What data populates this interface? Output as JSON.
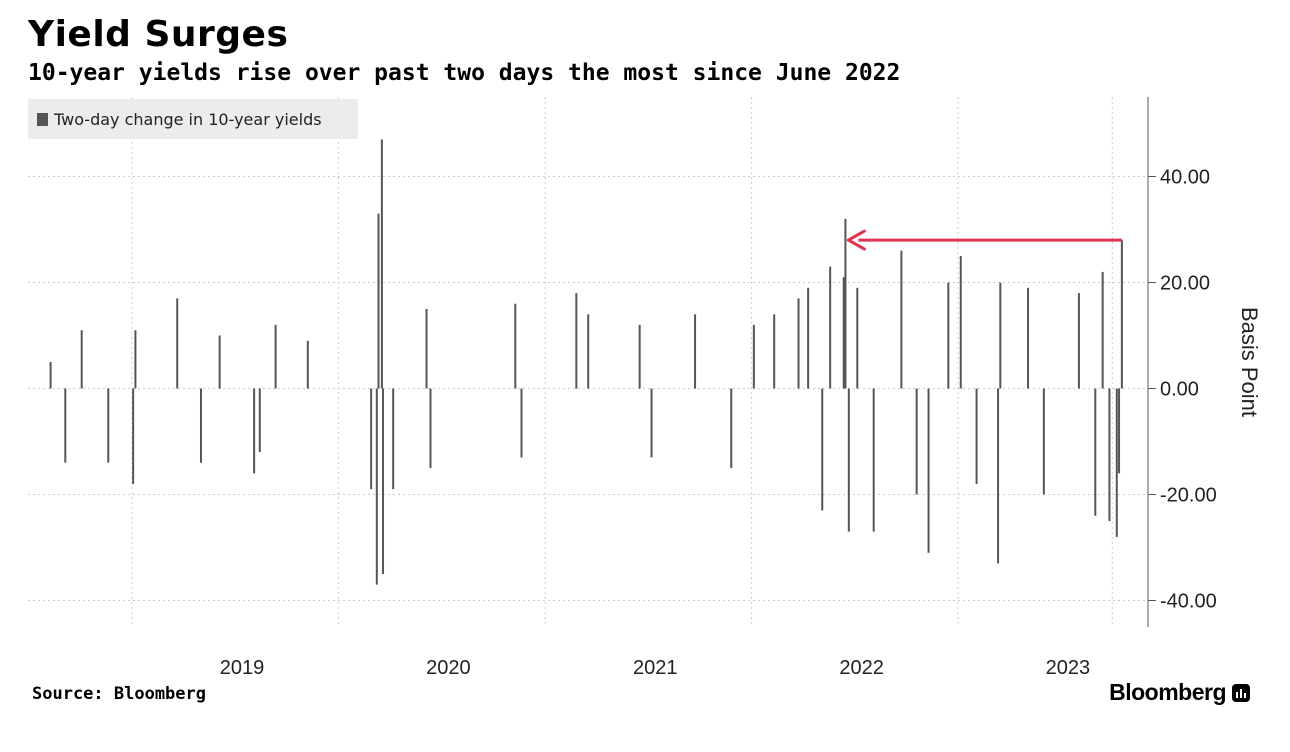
{
  "header": {
    "title": "Yield Surges",
    "subtitle": "10-year yields rise over past two days the most since June 2022"
  },
  "footer": {
    "source": "Source: Bloomberg",
    "brand": "Bloomberg"
  },
  "colors": {
    "bars": "#555555",
    "arrow": "#e0334f",
    "grid": "#cccccc",
    "legend_bg": "#ececec"
  },
  "chart_data": {
    "type": "bar",
    "legend": [
      "Two-day change in 10-year yields"
    ],
    "legend_placement": "top-left",
    "ylabel": "Basis Point",
    "ylim": [
      -45,
      55
    ],
    "yticks": [
      40,
      20,
      0,
      -20,
      -40
    ],
    "ytick_labels": [
      "40.00",
      "20.00",
      "0.00",
      "-20.00",
      "-40.00"
    ],
    "xlim": [
      "2018-07-01",
      "2023-10-20"
    ],
    "x_tick_labels": [
      "2019",
      "2020",
      "2021",
      "2022",
      "2023"
    ],
    "x_tick_positions": [
      "2019-01-01",
      "2020-01-01",
      "2021-01-01",
      "2022-01-01",
      "2023-01-01"
    ],
    "grid": true,
    "series": [
      {
        "name": "Two-day change in 10-year yields",
        "frequency": "trading days, approximate sampled extremes",
        "points": [
          {
            "date": "2018-08-10",
            "value": 5
          },
          {
            "date": "2018-09-05",
            "value": -14
          },
          {
            "date": "2018-10-04",
            "value": 11
          },
          {
            "date": "2018-11-20",
            "value": -14
          },
          {
            "date": "2019-01-03",
            "value": -18
          },
          {
            "date": "2019-01-07",
            "value": 11
          },
          {
            "date": "2019-03-22",
            "value": 17
          },
          {
            "date": "2019-05-03",
            "value": -14
          },
          {
            "date": "2019-06-05",
            "value": 10
          },
          {
            "date": "2019-08-05",
            "value": -16
          },
          {
            "date": "2019-08-15",
            "value": -12
          },
          {
            "date": "2019-09-12",
            "value": 12
          },
          {
            "date": "2019-11-08",
            "value": 9
          },
          {
            "date": "2020-02-28",
            "value": -19
          },
          {
            "date": "2020-03-09",
            "value": -37
          },
          {
            "date": "2020-03-12",
            "value": 33
          },
          {
            "date": "2020-03-18",
            "value": 47
          },
          {
            "date": "2020-03-20",
            "value": -35
          },
          {
            "date": "2020-04-07",
            "value": -19
          },
          {
            "date": "2020-06-05",
            "value": 15
          },
          {
            "date": "2020-06-12",
            "value": -15
          },
          {
            "date": "2020-11-09",
            "value": 16
          },
          {
            "date": "2020-11-20",
            "value": -13
          },
          {
            "date": "2021-02-25",
            "value": 18
          },
          {
            "date": "2021-03-18",
            "value": 14
          },
          {
            "date": "2021-06-17",
            "value": 12
          },
          {
            "date": "2021-07-08",
            "value": -13
          },
          {
            "date": "2021-09-23",
            "value": 14
          },
          {
            "date": "2021-11-26",
            "value": -15
          },
          {
            "date": "2022-01-05",
            "value": 12
          },
          {
            "date": "2022-02-10",
            "value": 14
          },
          {
            "date": "2022-03-25",
            "value": 17
          },
          {
            "date": "2022-04-11",
            "value": 19
          },
          {
            "date": "2022-05-06",
            "value": -23
          },
          {
            "date": "2022-05-20",
            "value": 23
          },
          {
            "date": "2022-06-13",
            "value": 21
          },
          {
            "date": "2022-06-16",
            "value": 32
          },
          {
            "date": "2022-06-22",
            "value": -27
          },
          {
            "date": "2022-07-07",
            "value": 19
          },
          {
            "date": "2022-08-05",
            "value": -27
          },
          {
            "date": "2022-09-23",
            "value": 26
          },
          {
            "date": "2022-10-20",
            "value": -20
          },
          {
            "date": "2022-11-10",
            "value": -31
          },
          {
            "date": "2022-12-15",
            "value": 20
          },
          {
            "date": "2023-01-06",
            "value": 25
          },
          {
            "date": "2023-02-03",
            "value": -18
          },
          {
            "date": "2023-03-13",
            "value": -33
          },
          {
            "date": "2023-03-17",
            "value": 20
          },
          {
            "date": "2023-05-05",
            "value": 19
          },
          {
            "date": "2023-06-02",
            "value": -20
          },
          {
            "date": "2023-08-03",
            "value": 18
          },
          {
            "date": "2023-09-01",
            "value": -24
          },
          {
            "date": "2023-09-14",
            "value": 22
          },
          {
            "date": "2023-09-26",
            "value": -25
          },
          {
            "date": "2023-10-09",
            "value": -28
          },
          {
            "date": "2023-10-13",
            "value": -16
          },
          {
            "date": "2023-10-18",
            "value": 28
          }
        ]
      }
    ],
    "annotation": {
      "type": "arrow",
      "from": {
        "date": "2023-10-18",
        "value": 28
      },
      "to": {
        "date": "2022-06-16",
        "value": 28
      }
    }
  }
}
